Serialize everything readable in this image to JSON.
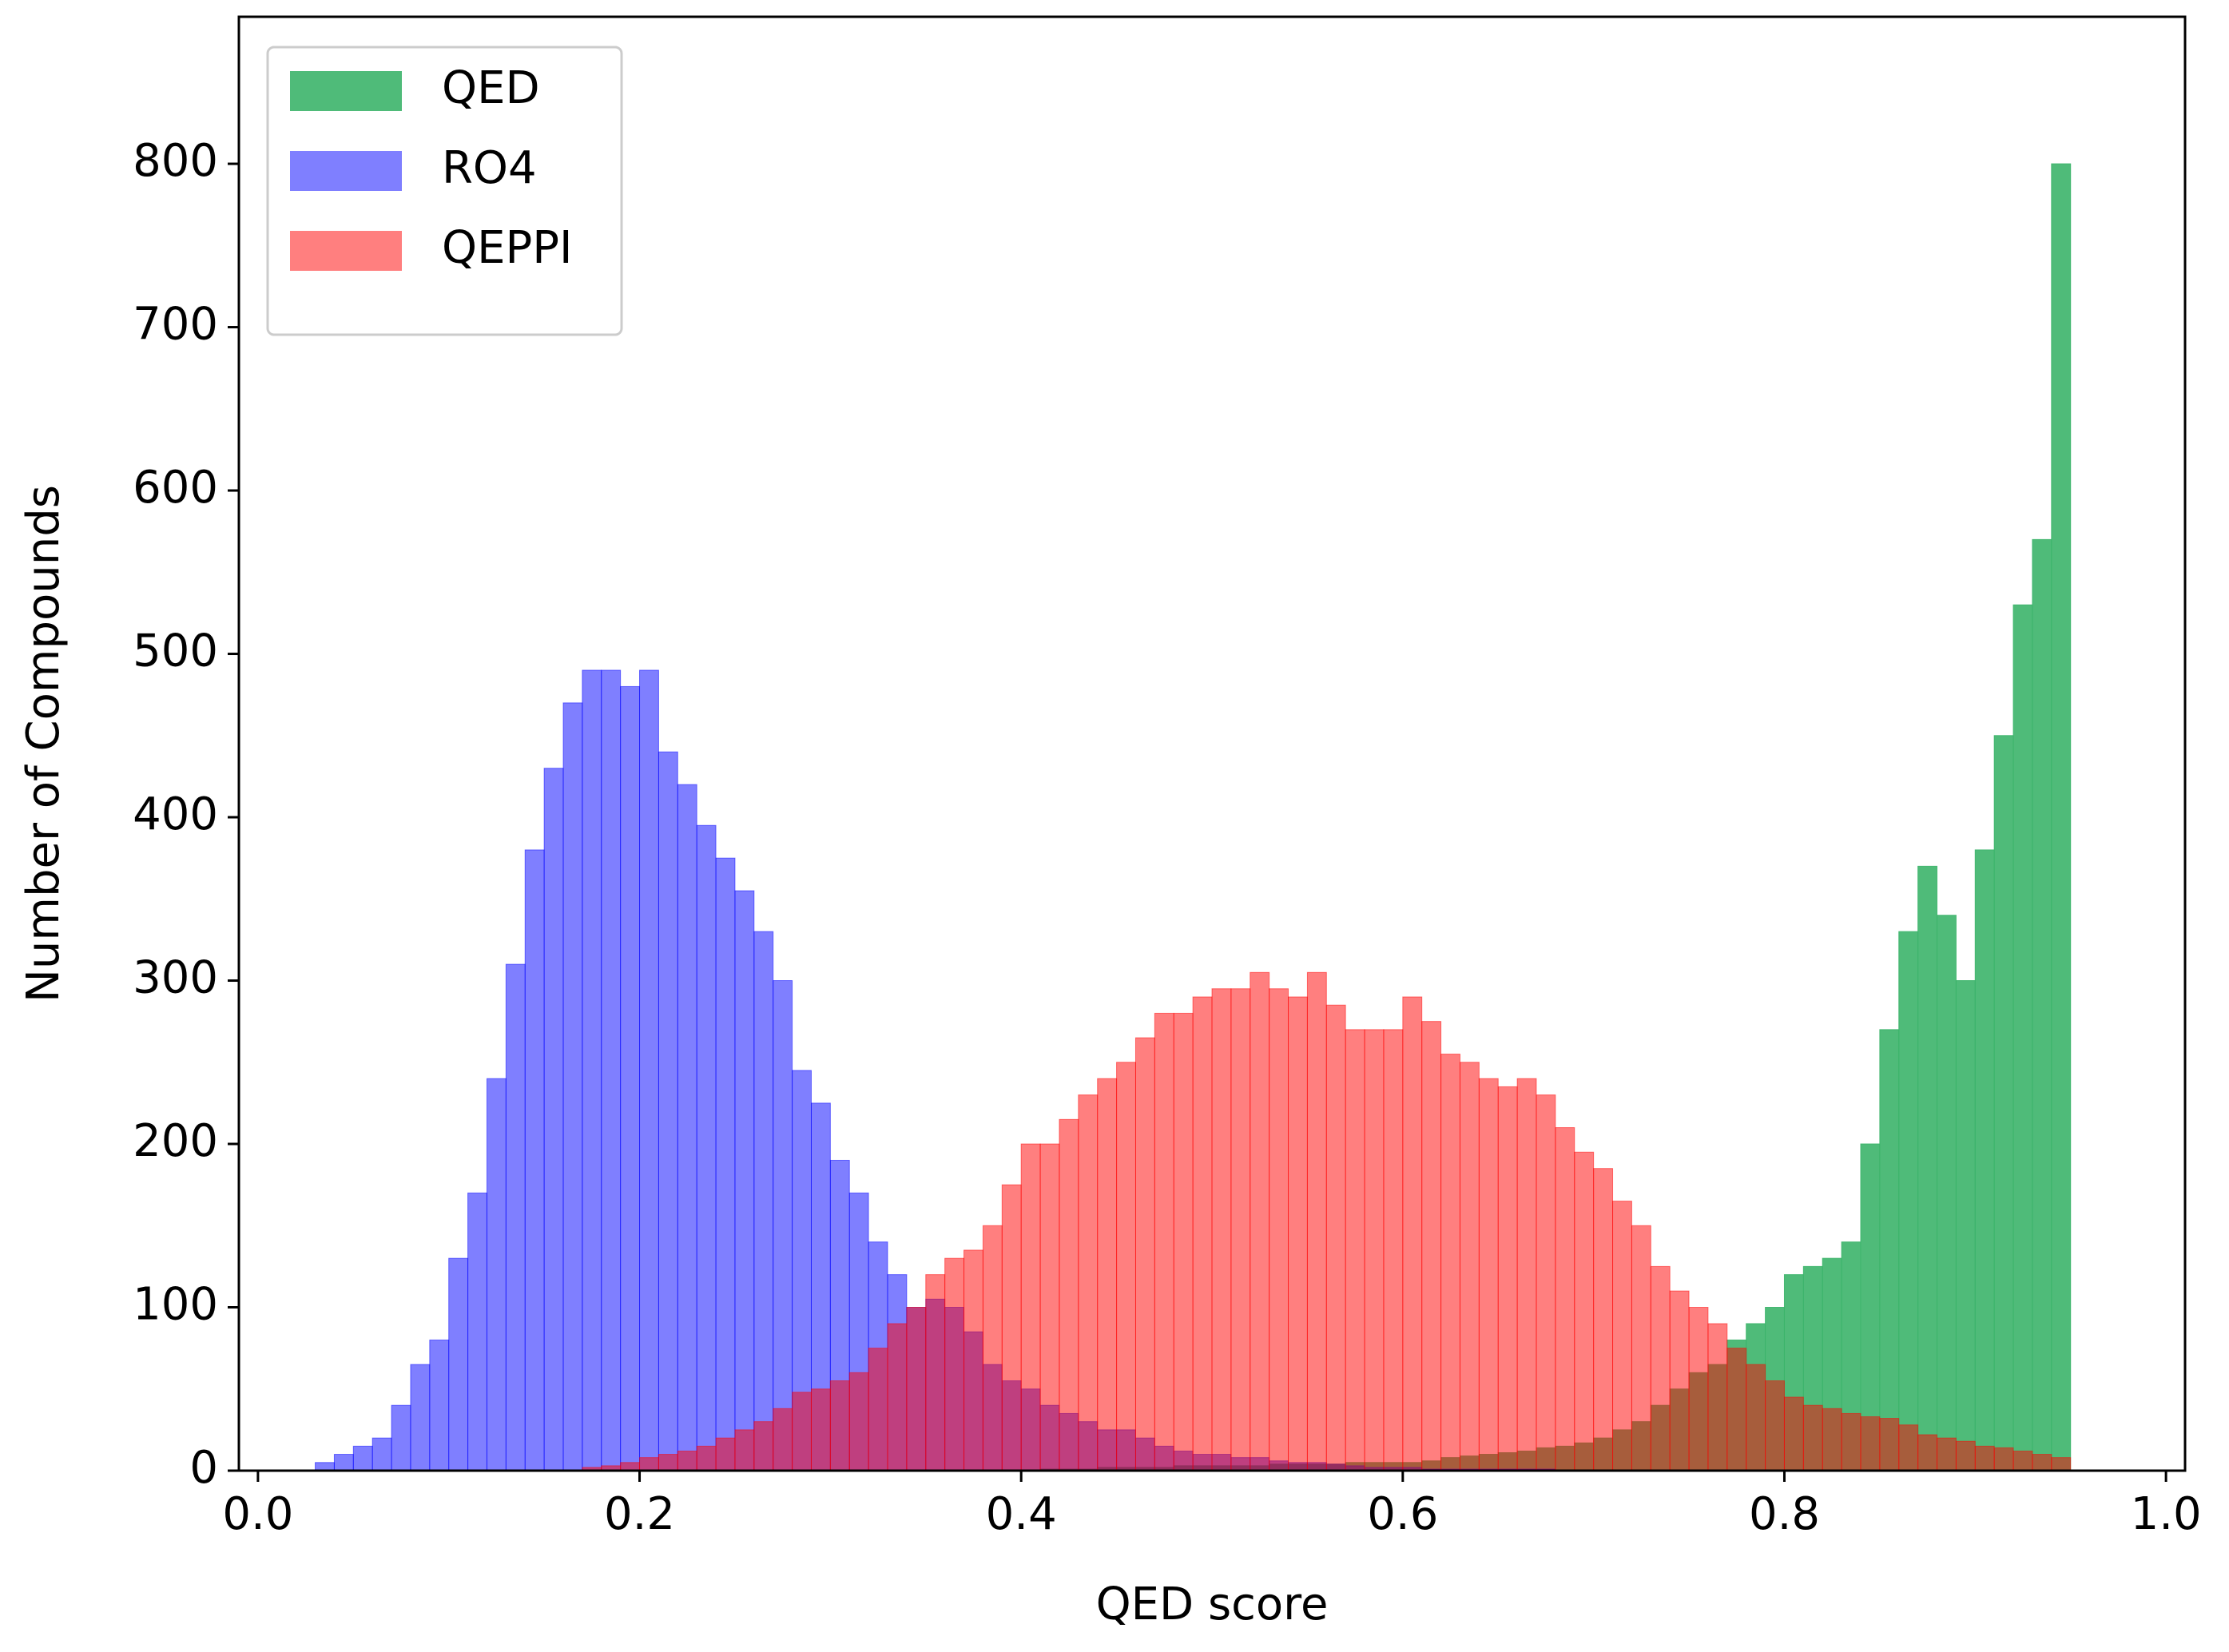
{
  "chart_data": {
    "type": "histogram",
    "xlabel": "QED score",
    "ylabel": "Number of Compounds",
    "bins": [
      0.03,
      0.04,
      0.05,
      0.06,
      0.07,
      0.08,
      0.09,
      0.1,
      0.11,
      0.12,
      0.13,
      0.14,
      0.15,
      0.16,
      0.17,
      0.18,
      0.19,
      0.2,
      0.21,
      0.22,
      0.23,
      0.24,
      0.25,
      0.26,
      0.27,
      0.28,
      0.29,
      0.3,
      0.31,
      0.32,
      0.33,
      0.34,
      0.35,
      0.36,
      0.37,
      0.38,
      0.39,
      0.4,
      0.41,
      0.42,
      0.43,
      0.44,
      0.45,
      0.46,
      0.47,
      0.48,
      0.49,
      0.5,
      0.51,
      0.52,
      0.53,
      0.54,
      0.55,
      0.56,
      0.57,
      0.58,
      0.59,
      0.6,
      0.61,
      0.62,
      0.63,
      0.64,
      0.65,
      0.66,
      0.67,
      0.68,
      0.69,
      0.7,
      0.71,
      0.72,
      0.73,
      0.74,
      0.75,
      0.76,
      0.77,
      0.78,
      0.79,
      0.8,
      0.81,
      0.82,
      0.83,
      0.84,
      0.85,
      0.86,
      0.87,
      0.88,
      0.89,
      0.9,
      0.91,
      0.92,
      0.93,
      0.94,
      0.95
    ],
    "series": [
      {
        "name": "QED",
        "color": "#3cb46a",
        "opacity": 0.9,
        "values": [
          0,
          0,
          0,
          0,
          0,
          0,
          0,
          0,
          0,
          0,
          0,
          0,
          0,
          0,
          0,
          0,
          0,
          0,
          0,
          0,
          0,
          0,
          0,
          0,
          0,
          0,
          0,
          0,
          0,
          0,
          0,
          0,
          0,
          0,
          0,
          0,
          0,
          0,
          1,
          1,
          1,
          2,
          2,
          2,
          2,
          3,
          3,
          3,
          3,
          3,
          4,
          4,
          4,
          4,
          5,
          5,
          5,
          5,
          6,
          8,
          9,
          10,
          11,
          12,
          14,
          15,
          17,
          20,
          25,
          30,
          40,
          50,
          60,
          65,
          80,
          90,
          100,
          120,
          125,
          130,
          140,
          200,
          270,
          330,
          370,
          340,
          300,
          380,
          450,
          530,
          570,
          800
        ]
      },
      {
        "name": "RO4",
        "color": "#0000ff",
        "opacity": 0.5,
        "values": [
          5,
          10,
          15,
          20,
          40,
          65,
          80,
          130,
          170,
          240,
          310,
          380,
          430,
          470,
          490,
          490,
          480,
          490,
          440,
          420,
          395,
          375,
          355,
          330,
          300,
          245,
          225,
          190,
          170,
          140,
          120,
          100,
          105,
          100,
          85,
          65,
          55,
          50,
          40,
          35,
          30,
          25,
          25,
          20,
          15,
          12,
          10,
          10,
          8,
          8,
          6,
          5,
          5,
          4,
          3,
          2,
          2,
          2,
          1,
          1,
          1,
          1,
          1,
          1,
          1,
          0,
          0,
          0,
          0,
          0,
          0,
          0,
          0,
          0,
          0,
          0,
          0,
          0,
          0,
          0,
          0,
          0,
          0,
          0,
          0,
          0,
          0,
          0,
          0,
          0,
          0,
          0
        ]
      },
      {
        "name": "QEPPI",
        "color": "#ff0000",
        "opacity": 0.5,
        "values": [
          0,
          0,
          0,
          0,
          0,
          0,
          0,
          0,
          0,
          0,
          0,
          0,
          0,
          0,
          2,
          3,
          5,
          8,
          10,
          12,
          15,
          20,
          25,
          30,
          38,
          48,
          50,
          55,
          60,
          75,
          90,
          100,
          120,
          130,
          135,
          150,
          175,
          200,
          200,
          215,
          230,
          240,
          250,
          265,
          280,
          280,
          290,
          295,
          295,
          305,
          295,
          290,
          305,
          285,
          270,
          270,
          270,
          290,
          275,
          255,
          250,
          240,
          235,
          240,
          230,
          210,
          195,
          185,
          165,
          150,
          125,
          110,
          100,
          90,
          75,
          65,
          55,
          45,
          40,
          38,
          35,
          33,
          32,
          28,
          22,
          20,
          18,
          15,
          14,
          12,
          10,
          8
        ]
      }
    ],
    "xlim": [
      -0.01,
      1.01
    ],
    "ylim": [
      0,
      890
    ],
    "xticks": [
      {
        "value": 0,
        "label": "0.0"
      },
      0.2,
      0.4,
      0.6,
      0.8,
      {
        "value": 1,
        "label": "1.0"
      }
    ],
    "yticks": [
      0,
      100,
      200,
      300,
      400,
      500,
      600,
      700,
      800
    ],
    "legend": "upper left"
  }
}
